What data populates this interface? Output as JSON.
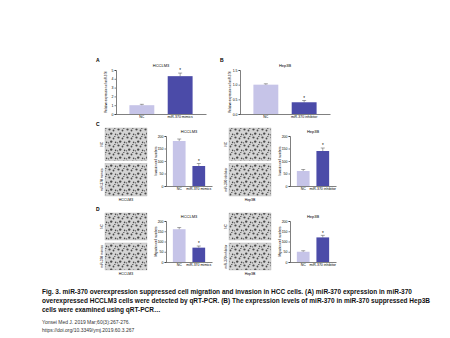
{
  "chart_data": [
    {
      "type": "bar",
      "title": "HCCLM3",
      "y_label": "Relative expression of miR-370",
      "categories": [
        "NC",
        "miR-370 mimics"
      ],
      "values": [
        1,
        4.3
      ],
      "errors": [
        0.1,
        0.35
      ],
      "annotations": [
        null,
        "*"
      ],
      "colors": [
        "#c6c4e8",
        "#4b4ba8"
      ],
      "ylim": [
        0,
        5
      ],
      "yticks": [
        0,
        1,
        2,
        3,
        4,
        5
      ]
    },
    {
      "type": "bar",
      "title": "Hep3B",
      "y_label": "Relative expression of miR-370",
      "categories": [
        "NC",
        "miR-370 inhibitor"
      ],
      "values": [
        1.0,
        0.4
      ],
      "errors": [
        0.03,
        0.06
      ],
      "annotations": [
        null,
        "*"
      ],
      "colors": [
        "#c6c4e8",
        "#4b4ba8"
      ],
      "ylim": [
        0,
        1.5
      ],
      "yticks": [
        {
          "value": 0,
          "label": "0.0"
        },
        0.5,
        {
          "value": 1,
          "label": "1.0"
        },
        1.5
      ]
    },
    {
      "type": "bar",
      "title": "HCCLM3",
      "y_label": "Invasion cell numbers",
      "categories": [
        "NC",
        "miR-370 mimics"
      ],
      "values": [
        180,
        80
      ],
      "errors": [
        8,
        10
      ],
      "annotations": [
        null,
        "*"
      ],
      "colors": [
        "#c6c4e8",
        "#4b4ba8"
      ],
      "ylim": [
        0,
        200
      ],
      "yticks": [
        0,
        50,
        100,
        150,
        200
      ]
    },
    {
      "type": "bar",
      "title": "Hep3B",
      "y_label": "Invasion cell numbers",
      "categories": [
        "NC",
        "miR-370 inhibitor"
      ],
      "values": [
        60,
        140
      ],
      "errors": [
        6,
        12
      ],
      "annotations": [
        null,
        "*"
      ],
      "colors": [
        "#c6c4e8",
        "#4b4ba8"
      ],
      "ylim": [
        0,
        200
      ],
      "yticks": [
        0,
        50,
        100,
        150,
        200
      ]
    },
    {
      "type": "bar",
      "title": "HCCLM3",
      "y_label": "Migration cell numbers",
      "categories": [
        "NC",
        "miR-370 mimics"
      ],
      "values": [
        160,
        70
      ],
      "errors": [
        8,
        8
      ],
      "annotations": [
        null,
        "*"
      ],
      "colors": [
        "#c6c4e8",
        "#4b4ba8"
      ],
      "ylim": [
        0,
        200
      ],
      "yticks": [
        0,
        50,
        100,
        150,
        200
      ]
    },
    {
      "type": "bar",
      "title": "Hep3B",
      "y_label": "Migration cell numbers",
      "categories": [
        "NC",
        "miR-370 inhibitor"
      ],
      "values": [
        50,
        120
      ],
      "errors": [
        5,
        10
      ],
      "annotations": [
        null,
        "*"
      ],
      "colors": [
        "#c6c4e8",
        "#4b4ba8"
      ],
      "ylim": [
        0,
        200
      ],
      "yticks": [
        0,
        50,
        100,
        150,
        200
      ]
    }
  ],
  "figure": {
    "panel_labels": [
      "A",
      "B",
      "C",
      "D"
    ],
    "image_groups": [
      {
        "rows": [
          "NC",
          "miR-370 mimics"
        ],
        "cell_line": "HCCLM3"
      },
      {
        "rows": [
          "NC",
          "miR-370 inhibitor"
        ],
        "cell_line": "Hep3B"
      },
      {
        "rows": [
          "NC",
          "miR-370 mimics"
        ],
        "cell_line": "HCCLM3"
      },
      {
        "rows": [
          "NC",
          "miR-370 inhibitor"
        ],
        "cell_line": "Hep3B"
      }
    ]
  },
  "caption": {
    "lines": [
      "Fig. 3. miR-370 overexpression suppressed cell migration and invasion in HCC cells. (A) miR-370 expression in miR-370",
      "overexpressed HCCLM3 cells were detected by qRT-PCR. (B) The expression levels of miR-370 in miR-370 suppressed Hep3B",
      "cells were examined using qRT-PCR…"
    ]
  },
  "citation": {
    "journal": "Yonsei Med J. 2019 Mar;60(3):267-276.",
    "doi": "https://doi.org/10.3349/ymj.2019.60.3.267"
  }
}
